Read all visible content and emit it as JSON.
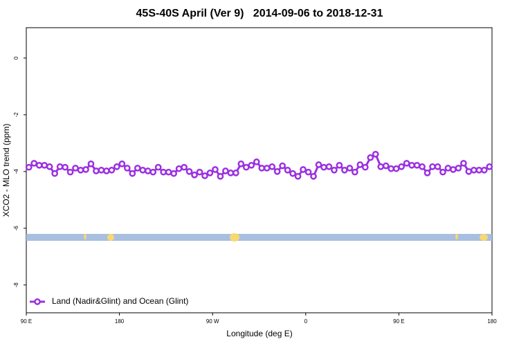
{
  "chart_data": {
    "type": "line",
    "title": "45S-40S April (Ver 9)   2014-09-06 to 2018-12-31",
    "x_label": "Longitude (deg E)",
    "y_label": "XCO2 - MLO trend (ppm)",
    "xlim": [
      90,
      540
    ],
    "ylim": [
      -8.98,
      1.07
    ],
    "xticks": [
      {
        "value": 90,
        "label": "90 E"
      },
      180,
      {
        "value": 270,
        "label": "90 W"
      },
      {
        "value": 360,
        "label": "0"
      },
      {
        "value": 450,
        "label": "90 E"
      },
      {
        "value": 540,
        "label": "180"
      }
    ],
    "yticks": [
      0,
      -2,
      -4,
      -6,
      -8
    ],
    "legend": "bottom left",
    "x": [
      92.5,
      97.5,
      102.5,
      107.5,
      112.5,
      117.5,
      122.5,
      127.5,
      132.5,
      137.5,
      142.5,
      147.5,
      152.5,
      157.5,
      162.5,
      167.5,
      172.5,
      177.5,
      182.5,
      187.5,
      192.5,
      197.5,
      202.5,
      207.5,
      212.5,
      217.5,
      222.5,
      227.5,
      232.5,
      237.5,
      242.5,
      247.5,
      252.5,
      257.5,
      262.5,
      267.5,
      272.5,
      277.5,
      282.5,
      287.5,
      292.5,
      297.5,
      302.5,
      307.5,
      312.5,
      317.5,
      322.5,
      327.5,
      332.5,
      337.5,
      342.5,
      347.5,
      352.5,
      357.5,
      362.5,
      367.5,
      372.5,
      377.5,
      382.5,
      387.5,
      392.5,
      397.5,
      402.5,
      407.5,
      412.5,
      417.5,
      422.5,
      427.5,
      432.5,
      437.5,
      442.5,
      447.5,
      452.5,
      457.5,
      462.5,
      467.5,
      472.5,
      477.5,
      482.5,
      487.5,
      492.5,
      497.5,
      502.5,
      507.5,
      512.5,
      517.5,
      522.5,
      527.5,
      532.5,
      537.5
    ],
    "series": [
      {
        "name": "Land (Nadir&Glint) and Ocean (Glint)",
        "color": "#9b30e0",
        "values": [
          -3.85,
          -3.71,
          -3.78,
          -3.78,
          -3.83,
          -4.07,
          -3.83,
          -3.85,
          -4.02,
          -3.88,
          -3.95,
          -3.93,
          -3.73,
          -3.98,
          -3.95,
          -3.98,
          -3.95,
          -3.83,
          -3.73,
          -3.88,
          -4.07,
          -3.88,
          -3.95,
          -3.98,
          -4.02,
          -3.85,
          -4.02,
          -4.02,
          -4.07,
          -3.9,
          -3.85,
          -4.0,
          -4.12,
          -4.02,
          -4.15,
          -4.05,
          -3.93,
          -4.17,
          -3.98,
          -4.05,
          -4.05,
          -3.73,
          -3.85,
          -3.78,
          -3.66,
          -3.88,
          -3.88,
          -3.83,
          -4.0,
          -3.8,
          -3.95,
          -4.07,
          -4.17,
          -3.93,
          -4.02,
          -4.17,
          -3.76,
          -3.85,
          -3.83,
          -3.95,
          -3.78,
          -3.95,
          -3.88,
          -4.02,
          -3.76,
          -3.85,
          -3.51,
          -3.39,
          -3.83,
          -3.8,
          -3.9,
          -3.9,
          -3.83,
          -3.71,
          -3.78,
          -3.78,
          -3.83,
          -4.05,
          -3.83,
          -3.83,
          -4.02,
          -3.88,
          -3.93,
          -3.88,
          -3.71,
          -4.0,
          -3.95,
          -3.95,
          -3.95,
          -3.83
        ]
      }
    ]
  }
}
